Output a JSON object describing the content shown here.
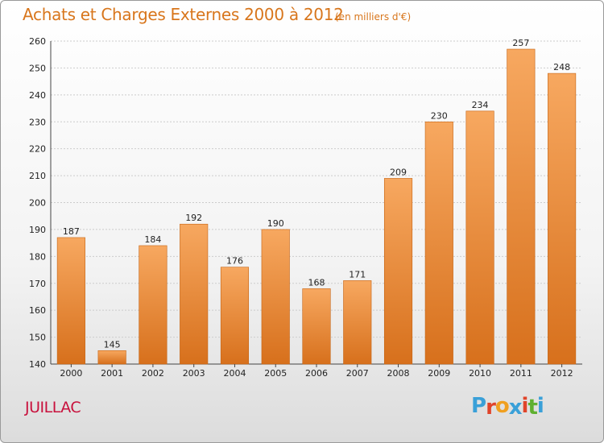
{
  "header": {
    "title": "Achats et Charges Externes 2000 à 2012",
    "subtitle": "(en milliers d'€)"
  },
  "footer": {
    "place": "JUILLAC",
    "logo": "Proxiti",
    "logo_colors": [
      "#3aa0d8",
      "#e0442a",
      "#f0a020",
      "#3aa0d8",
      "#e0442a",
      "#5fb030",
      "#3aa0d8"
    ]
  },
  "colors": {
    "bar_top": "#f7a860",
    "bar_bottom": "#d7701c",
    "bar_edge": "#c56414",
    "title": "#d8761c",
    "place": "#c8103c",
    "grid": "#cccccc"
  },
  "chart_data": {
    "type": "bar",
    "title": "Achats et Charges Externes 2000 à 2012",
    "subtitle": "(en milliers d'€)",
    "categories": [
      "2000",
      "2001",
      "2002",
      "2003",
      "2004",
      "2005",
      "2006",
      "2007",
      "2008",
      "2009",
      "2010",
      "2011",
      "2012"
    ],
    "values": [
      187,
      145,
      184,
      192,
      176,
      190,
      168,
      171,
      209,
      230,
      234,
      257,
      248
    ],
    "ylim": [
      140,
      260
    ],
    "yticks": [
      140,
      150,
      160,
      170,
      180,
      190,
      200,
      210,
      220,
      230,
      240,
      250,
      260
    ],
    "grid": true,
    "data_labels": true,
    "legend": "none"
  }
}
